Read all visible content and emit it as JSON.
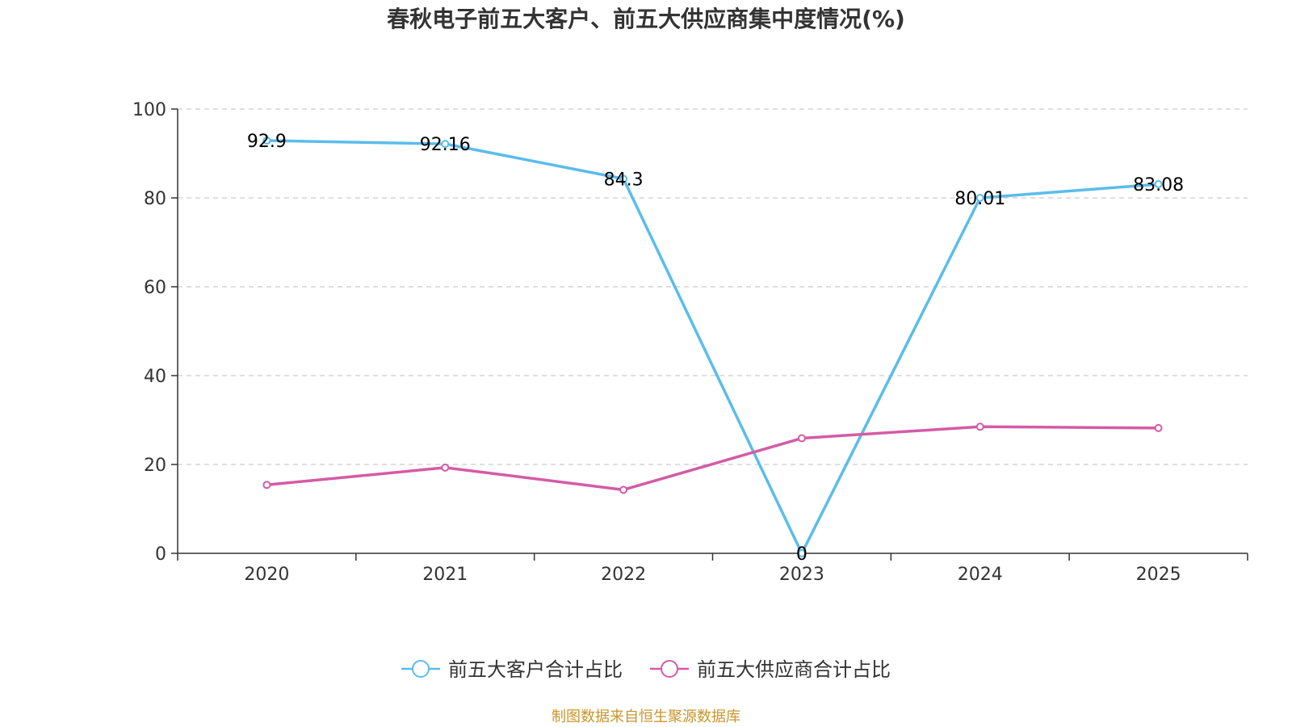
{
  "chart_data": {
    "type": "line",
    "title": "春秋电子前五大客户、前五大供应商集中度情况(%)",
    "categories": [
      "2020",
      "2021",
      "2022",
      "2023",
      "2024",
      "2025"
    ],
    "ylim": [
      0,
      100
    ],
    "yticks": [
      0,
      20,
      40,
      60,
      80,
      100
    ],
    "grid": true,
    "legend_position": "bottom-center",
    "series": [
      {
        "name": "前五大客户合计占比",
        "color": "#5bbcec",
        "values": [
          92.9,
          92.16,
          84.3,
          0,
          80.01,
          83.08
        ],
        "labels": [
          "92.9",
          "92.16",
          "84.3",
          "0",
          "80.01",
          "83.08"
        ],
        "show_labels": true
      },
      {
        "name": "前五大供应商合计占比",
        "color": "#d45ba6",
        "values": [
          15.4,
          19.3,
          14.3,
          25.9,
          28.5,
          28.2
        ],
        "show_labels": false
      }
    ]
  },
  "source_text": "制图数据来自恒生聚源数据库",
  "source_color": "#c8952a"
}
